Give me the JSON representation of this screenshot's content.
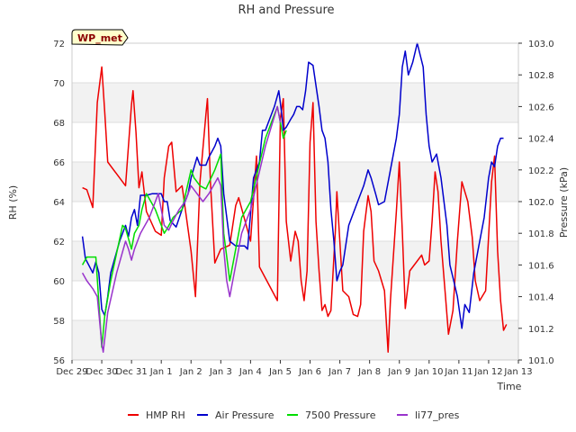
{
  "chart_data": {
    "type": "line",
    "title": "RH and Pressure",
    "xlabel": "Time",
    "ylabel": "RH (%)",
    "y2label": "Pressure (kPa)",
    "x_ticks": [
      "Dec 29",
      "Dec 30",
      "Dec 31",
      "Jan 1",
      "Jan 2",
      "Jan 3",
      "Jan 4",
      "Jan 5",
      "Jan 6",
      "Jan 7",
      "Jan 8",
      "Jan 9",
      "Jan 10",
      "Jan 11",
      "Jan 12",
      "Jan 13"
    ],
    "xlim_days": [
      0,
      15
    ],
    "ylim": [
      56,
      72
    ],
    "y_ticks": [
      56,
      58,
      60,
      62,
      64,
      66,
      68,
      70,
      72
    ],
    "y2lim": [
      101.0,
      103.0
    ],
    "y2_ticks": [
      "101.0",
      "101.2",
      "101.4",
      "101.6",
      "101.8",
      "102.0",
      "102.2",
      "102.4",
      "102.6",
      "102.8",
      "103.0"
    ],
    "bands": [
      [
        56,
        58
      ],
      [
        60,
        62
      ],
      [
        64,
        66
      ],
      [
        68,
        70
      ]
    ],
    "grid": true,
    "legend_position": "bottom",
    "station_label": "WP_met",
    "series": [
      {
        "name": "HMP RH",
        "axis": "left",
        "color": "#ee0000",
        "points": [
          [
            0.35,
            64.7
          ],
          [
            0.5,
            64.6
          ],
          [
            0.7,
            63.7
          ],
          [
            0.85,
            69.0
          ],
          [
            1.0,
            70.8
          ],
          [
            1.1,
            68.5
          ],
          [
            1.2,
            66.0
          ],
          [
            1.5,
            65.4
          ],
          [
            1.8,
            64.8
          ],
          [
            2.0,
            68.9
          ],
          [
            2.05,
            69.6
          ],
          [
            2.15,
            67.5
          ],
          [
            2.25,
            64.7
          ],
          [
            2.35,
            65.5
          ],
          [
            2.5,
            63.5
          ],
          [
            2.8,
            62.5
          ],
          [
            3.0,
            62.3
          ],
          [
            3.1,
            65.2
          ],
          [
            3.25,
            66.8
          ],
          [
            3.35,
            67.0
          ],
          [
            3.5,
            64.5
          ],
          [
            3.7,
            64.8
          ],
          [
            4.0,
            61.5
          ],
          [
            4.15,
            59.2
          ],
          [
            4.3,
            65.0
          ],
          [
            4.5,
            68.4
          ],
          [
            4.55,
            69.2
          ],
          [
            4.65,
            65.0
          ],
          [
            4.8,
            60.9
          ],
          [
            5.0,
            61.6
          ],
          [
            5.3,
            61.8
          ],
          [
            5.5,
            63.8
          ],
          [
            5.6,
            64.2
          ],
          [
            6.0,
            62.0
          ],
          [
            6.2,
            66.3
          ],
          [
            6.3,
            60.7
          ],
          [
            6.9,
            59.0
          ],
          [
            7.0,
            68.2
          ],
          [
            7.1,
            69.2
          ],
          [
            7.2,
            63.0
          ],
          [
            7.35,
            61.0
          ],
          [
            7.5,
            62.5
          ],
          [
            7.6,
            62.0
          ],
          [
            7.7,
            60.0
          ],
          [
            7.8,
            59.0
          ],
          [
            7.9,
            60.5
          ],
          [
            8.0,
            67.0
          ],
          [
            8.1,
            69.0
          ],
          [
            8.2,
            63.0
          ],
          [
            8.3,
            60.5
          ],
          [
            8.4,
            58.5
          ],
          [
            8.5,
            58.8
          ],
          [
            8.6,
            58.2
          ],
          [
            8.7,
            58.5
          ],
          [
            8.85,
            62.5
          ],
          [
            8.9,
            64.5
          ],
          [
            9.0,
            62.0
          ],
          [
            9.1,
            59.5
          ],
          [
            9.3,
            59.2
          ],
          [
            9.45,
            58.3
          ],
          [
            9.6,
            58.2
          ],
          [
            9.7,
            58.8
          ],
          [
            9.8,
            62.5
          ],
          [
            9.95,
            64.3
          ],
          [
            10.05,
            63.5
          ],
          [
            10.15,
            61.0
          ],
          [
            10.3,
            60.5
          ],
          [
            10.5,
            59.5
          ],
          [
            10.62,
            56.4
          ],
          [
            10.7,
            59.0
          ],
          [
            10.9,
            63.5
          ],
          [
            11.0,
            66.0
          ],
          [
            11.1,
            62.5
          ],
          [
            11.2,
            58.6
          ],
          [
            11.35,
            60.5
          ],
          [
            11.6,
            61.0
          ],
          [
            11.75,
            61.3
          ],
          [
            11.85,
            60.8
          ],
          [
            12.0,
            61.0
          ],
          [
            12.1,
            63.0
          ],
          [
            12.2,
            65.5
          ],
          [
            12.3,
            64.5
          ],
          [
            12.4,
            62.0
          ],
          [
            12.55,
            59.2
          ],
          [
            12.65,
            57.3
          ],
          [
            12.8,
            58.5
          ],
          [
            12.95,
            62.0
          ],
          [
            13.1,
            65.0
          ],
          [
            13.2,
            64.5
          ],
          [
            13.3,
            64.0
          ],
          [
            13.45,
            62.2
          ],
          [
            13.55,
            60.0
          ],
          [
            13.7,
            59.0
          ],
          [
            13.9,
            59.5
          ],
          [
            14.1,
            65.0
          ],
          [
            14.2,
            66.3
          ],
          [
            14.3,
            61.5
          ],
          [
            14.4,
            59.0
          ],
          [
            14.5,
            57.5
          ],
          [
            14.6,
            57.8
          ]
        ]
      },
      {
        "name": "Air Pressure",
        "axis": "right",
        "color": "#0000cc",
        "points": [
          [
            0.35,
            101.78
          ],
          [
            0.45,
            101.64
          ],
          [
            0.7,
            101.55
          ],
          [
            0.8,
            101.62
          ],
          [
            0.9,
            101.55
          ],
          [
            1.0,
            101.32
          ],
          [
            1.1,
            101.28
          ],
          [
            1.2,
            101.4
          ],
          [
            1.3,
            101.55
          ],
          [
            1.6,
            101.75
          ],
          [
            1.8,
            101.85
          ],
          [
            1.9,
            101.78
          ],
          [
            2.0,
            101.9
          ],
          [
            2.1,
            101.95
          ],
          [
            2.2,
            101.85
          ],
          [
            2.3,
            102.04
          ],
          [
            2.5,
            102.04
          ],
          [
            2.7,
            102.05
          ],
          [
            3.0,
            102.05
          ],
          [
            3.1,
            102.0
          ],
          [
            3.2,
            102.0
          ],
          [
            3.3,
            101.88
          ],
          [
            3.5,
            101.84
          ],
          [
            3.7,
            101.95
          ],
          [
            3.9,
            102.05
          ],
          [
            4.0,
            102.15
          ],
          [
            4.2,
            102.28
          ],
          [
            4.3,
            102.23
          ],
          [
            4.5,
            102.23
          ],
          [
            4.6,
            102.28
          ],
          [
            4.8,
            102.35
          ],
          [
            4.9,
            102.4
          ],
          [
            5.0,
            102.35
          ],
          [
            5.1,
            102.05
          ],
          [
            5.3,
            101.75
          ],
          [
            5.5,
            101.72
          ],
          [
            5.8,
            101.72
          ],
          [
            5.9,
            101.7
          ],
          [
            6.1,
            102.15
          ],
          [
            6.3,
            102.25
          ],
          [
            6.4,
            102.45
          ],
          [
            6.5,
            102.45
          ],
          [
            6.6,
            102.5
          ],
          [
            6.8,
            102.6
          ],
          [
            6.95,
            102.7
          ],
          [
            7.05,
            102.55
          ],
          [
            7.1,
            102.45
          ],
          [
            7.2,
            102.47
          ],
          [
            7.35,
            102.52
          ],
          [
            7.45,
            102.55
          ],
          [
            7.55,
            102.6
          ],
          [
            7.65,
            102.6
          ],
          [
            7.75,
            102.58
          ],
          [
            7.85,
            102.7
          ],
          [
            7.95,
            102.88
          ],
          [
            8.1,
            102.86
          ],
          [
            8.3,
            102.6
          ],
          [
            8.4,
            102.45
          ],
          [
            8.5,
            102.4
          ],
          [
            8.6,
            102.25
          ],
          [
            8.7,
            101.95
          ],
          [
            8.8,
            101.75
          ],
          [
            8.9,
            101.5
          ],
          [
            9.0,
            101.56
          ],
          [
            9.1,
            101.6
          ],
          [
            9.3,
            101.85
          ],
          [
            9.6,
            102.0
          ],
          [
            9.8,
            102.1
          ],
          [
            9.95,
            102.2
          ],
          [
            10.05,
            102.15
          ],
          [
            10.2,
            102.05
          ],
          [
            10.3,
            101.98
          ],
          [
            10.5,
            102.0
          ],
          [
            10.7,
            102.2
          ],
          [
            10.9,
            102.4
          ],
          [
            11.0,
            102.55
          ],
          [
            11.1,
            102.85
          ],
          [
            11.2,
            102.95
          ],
          [
            11.3,
            102.8
          ],
          [
            11.45,
            102.88
          ],
          [
            11.6,
            103.0
          ],
          [
            11.8,
            102.85
          ],
          [
            11.9,
            102.55
          ],
          [
            12.0,
            102.35
          ],
          [
            12.1,
            102.25
          ],
          [
            12.25,
            102.3
          ],
          [
            12.4,
            102.15
          ],
          [
            12.6,
            101.85
          ],
          [
            12.7,
            101.6
          ],
          [
            12.8,
            101.52
          ],
          [
            12.95,
            101.4
          ],
          [
            13.1,
            101.2
          ],
          [
            13.2,
            101.35
          ],
          [
            13.35,
            101.3
          ],
          [
            13.5,
            101.55
          ],
          [
            13.7,
            101.75
          ],
          [
            13.85,
            101.9
          ],
          [
            14.0,
            102.15
          ],
          [
            14.1,
            102.25
          ],
          [
            14.2,
            102.22
          ],
          [
            14.3,
            102.35
          ],
          [
            14.4,
            102.4
          ],
          [
            14.5,
            102.4
          ]
        ]
      },
      {
        "name": "7500 Pressure",
        "axis": "right",
        "color": "#00dd00",
        "points": [
          [
            0.35,
            101.6
          ],
          [
            0.5,
            101.65
          ],
          [
            0.8,
            101.65
          ],
          [
            1.0,
            101.08
          ],
          [
            1.1,
            101.28
          ],
          [
            1.3,
            101.5
          ],
          [
            1.7,
            101.85
          ],
          [
            1.8,
            101.83
          ],
          [
            2.0,
            101.7
          ],
          [
            2.1,
            101.8
          ],
          [
            2.25,
            101.85
          ],
          [
            2.35,
            101.95
          ],
          [
            2.5,
            102.05
          ],
          [
            2.8,
            101.95
          ],
          [
            3.0,
            101.85
          ],
          [
            3.1,
            101.8
          ],
          [
            3.2,
            101.83
          ],
          [
            3.4,
            101.9
          ],
          [
            3.7,
            101.95
          ],
          [
            4.0,
            102.2
          ],
          [
            4.1,
            102.15
          ],
          [
            4.3,
            102.1
          ],
          [
            4.5,
            102.08
          ],
          [
            4.8,
            102.2
          ],
          [
            5.0,
            102.3
          ],
          [
            5.1,
            101.8
          ],
          [
            5.3,
            101.5
          ],
          [
            5.5,
            101.7
          ],
          [
            5.7,
            101.9
          ],
          [
            6.0,
            102.0
          ],
          [
            6.5,
            102.4
          ],
          [
            6.9,
            102.6
          ],
          [
            7.0,
            102.5
          ],
          [
            7.1,
            102.4
          ],
          [
            7.2,
            102.45
          ]
        ]
      },
      {
        "name": "li77_pres",
        "axis": "right",
        "color": "#9933cc",
        "points": [
          [
            0.35,
            101.55
          ],
          [
            0.5,
            101.5
          ],
          [
            0.7,
            101.45
          ],
          [
            0.85,
            101.4
          ],
          [
            1.0,
            101.1
          ],
          [
            1.05,
            101.05
          ],
          [
            1.2,
            101.3
          ],
          [
            1.5,
            101.55
          ],
          [
            1.8,
            101.75
          ],
          [
            1.9,
            101.7
          ],
          [
            2.0,
            101.63
          ],
          [
            2.1,
            101.7
          ],
          [
            2.3,
            101.8
          ],
          [
            2.6,
            101.9
          ],
          [
            2.9,
            102.05
          ],
          [
            3.0,
            101.95
          ],
          [
            3.1,
            101.85
          ],
          [
            3.25,
            101.82
          ],
          [
            3.4,
            101.88
          ],
          [
            3.6,
            101.95
          ],
          [
            3.8,
            102.0
          ],
          [
            4.0,
            102.1
          ],
          [
            4.2,
            102.05
          ],
          [
            4.4,
            102.0
          ],
          [
            4.6,
            102.05
          ],
          [
            4.9,
            102.15
          ],
          [
            5.0,
            102.1
          ],
          [
            5.1,
            101.7
          ],
          [
            5.2,
            101.5
          ],
          [
            5.3,
            101.4
          ],
          [
            5.5,
            101.6
          ],
          [
            5.7,
            101.8
          ],
          [
            6.0,
            101.95
          ],
          [
            6.5,
            102.35
          ],
          [
            6.9,
            102.6
          ],
          [
            7.0,
            102.5
          ]
        ]
      }
    ]
  }
}
